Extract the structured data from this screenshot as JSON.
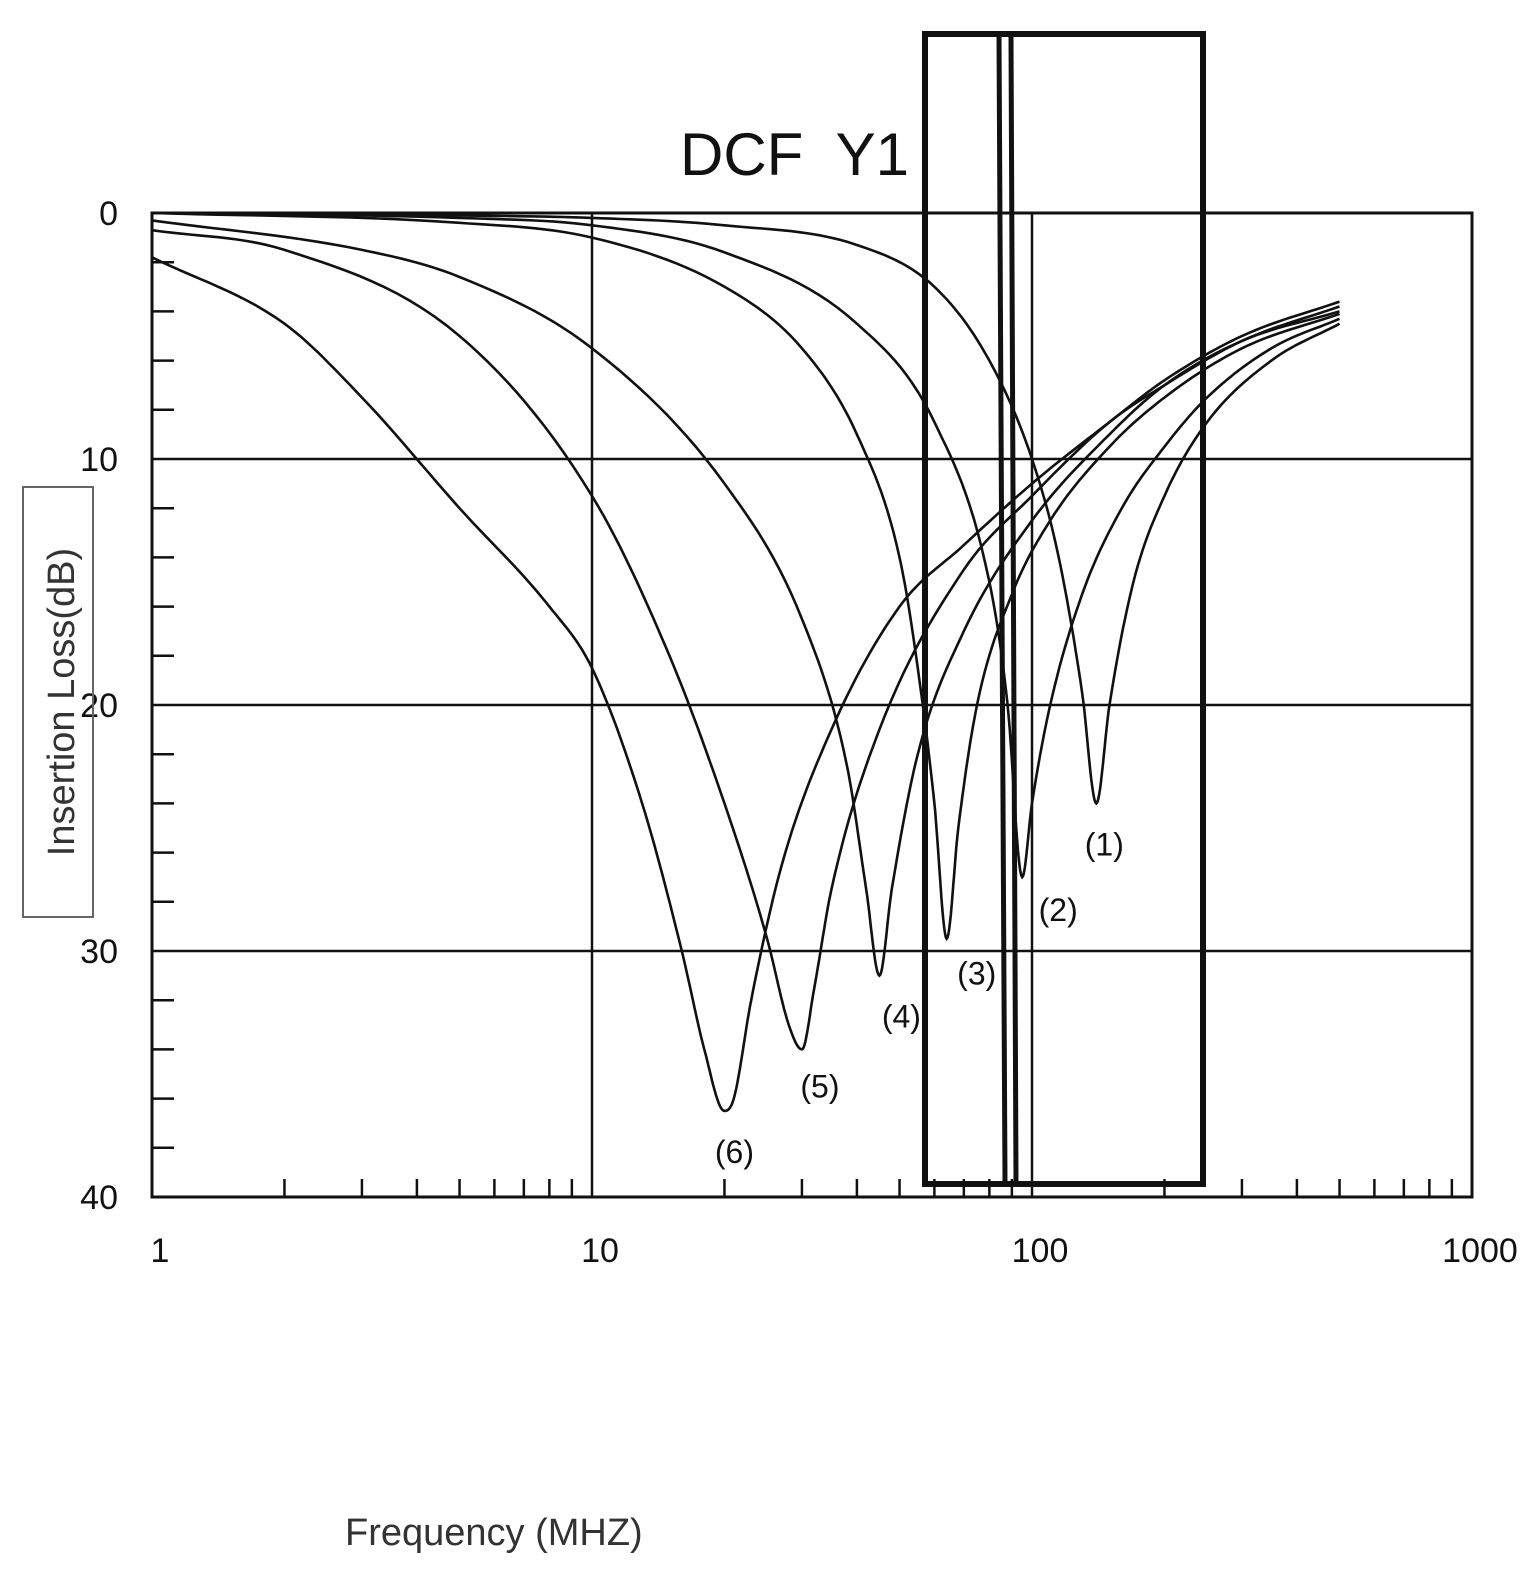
{
  "chart_data": {
    "type": "line",
    "title": "DCF  Y1",
    "xlabel": "Frequency (MHZ)",
    "ylabel": "Insertion Loss(dB)",
    "x_scale": "log",
    "xlim": [
      1,
      1000
    ],
    "ylim": [
      0,
      40
    ],
    "y_inverted": true,
    "grid": true,
    "x_ticks": [
      "1",
      "10",
      "100",
      "1000"
    ],
    "y_ticks": [
      "0",
      "10",
      "20",
      "30",
      "40"
    ],
    "series": [
      {
        "name": "(1)",
        "points": [
          [
            1,
            0.0
          ],
          [
            5,
            0.1
          ],
          [
            10,
            0.2
          ],
          [
            20,
            0.5
          ],
          [
            40,
            1.3
          ],
          [
            60,
            3.0
          ],
          [
            80,
            6.0
          ],
          [
            100,
            10.0
          ],
          [
            115,
            14.0
          ],
          [
            130,
            19.5
          ],
          [
            140,
            24.0
          ],
          [
            150,
            20.0
          ],
          [
            170,
            15.0
          ],
          [
            200,
            11.5
          ],
          [
            250,
            8.5
          ],
          [
            350,
            6.0
          ],
          [
            500,
            4.5
          ]
        ]
      },
      {
        "name": "(2)",
        "points": [
          [
            1,
            0.0
          ],
          [
            5,
            0.2
          ],
          [
            10,
            0.5
          ],
          [
            20,
            1.6
          ],
          [
            40,
            4.5
          ],
          [
            60,
            8.5
          ],
          [
            80,
            15.0
          ],
          [
            88,
            20.0
          ],
          [
            95,
            27.0
          ],
          [
            100,
            24.0
          ],
          [
            110,
            20.0
          ],
          [
            130,
            15.5
          ],
          [
            160,
            12.0
          ],
          [
            200,
            9.5
          ],
          [
            250,
            7.5
          ],
          [
            350,
            5.5
          ],
          [
            500,
            4.3
          ]
        ]
      },
      {
        "name": "(3)",
        "points": [
          [
            1,
            0.0
          ],
          [
            5,
            0.4
          ],
          [
            10,
            1.0
          ],
          [
            20,
            3.0
          ],
          [
            30,
            5.5
          ],
          [
            40,
            9.0
          ],
          [
            50,
            14.0
          ],
          [
            55,
            18.5
          ],
          [
            60,
            24.0
          ],
          [
            64,
            29.5
          ],
          [
            68,
            25.0
          ],
          [
            75,
            20.0
          ],
          [
            90,
            15.5
          ],
          [
            110,
            12.5
          ],
          [
            150,
            9.5
          ],
          [
            200,
            7.5
          ],
          [
            300,
            5.5
          ],
          [
            500,
            4.1
          ]
        ]
      },
      {
        "name": "(4)",
        "points": [
          [
            1,
            0.3
          ],
          [
            3,
            1.5
          ],
          [
            5,
            2.6
          ],
          [
            10,
            5.5
          ],
          [
            20,
            11.0
          ],
          [
            30,
            16.5
          ],
          [
            38,
            22.5
          ],
          [
            42,
            27.5
          ],
          [
            45,
            31.0
          ],
          [
            48,
            27.5
          ],
          [
            55,
            22.0
          ],
          [
            70,
            17.0
          ],
          [
            100,
            12.5
          ],
          [
            150,
            9.0
          ],
          [
            200,
            7.0
          ],
          [
            300,
            5.2
          ],
          [
            500,
            4.0
          ]
        ]
      },
      {
        "name": "(5)",
        "points": [
          [
            1,
            0.7
          ],
          [
            2,
            1.5
          ],
          [
            5,
            5.0
          ],
          [
            10,
            11.5
          ],
          [
            15,
            18.0
          ],
          [
            20,
            24.0
          ],
          [
            25,
            29.5
          ],
          [
            28,
            33.0
          ],
          [
            30,
            34.0
          ],
          [
            32,
            31.5
          ],
          [
            35,
            27.5
          ],
          [
            45,
            21.0
          ],
          [
            70,
            14.5
          ],
          [
            100,
            11.5
          ],
          [
            150,
            8.5
          ],
          [
            200,
            7.0
          ],
          [
            300,
            5.2
          ],
          [
            500,
            3.8
          ]
        ]
      },
      {
        "name": "(6)",
        "points": [
          [
            1,
            1.8
          ],
          [
            2,
            4.5
          ],
          [
            3,
            7.5
          ],
          [
            5,
            12.0
          ],
          [
            8,
            16.0
          ],
          [
            10,
            18.5
          ],
          [
            13,
            24.0
          ],
          [
            16,
            30.0
          ],
          [
            18,
            34.0
          ],
          [
            20,
            36.5
          ],
          [
            21,
            36.0
          ],
          [
            23,
            32.0
          ],
          [
            27,
            26.5
          ],
          [
            35,
            21.0
          ],
          [
            50,
            16.0
          ],
          [
            70,
            13.5
          ],
          [
            100,
            11.0
          ],
          [
            150,
            8.5
          ],
          [
            200,
            6.8
          ],
          [
            300,
            5.0
          ],
          [
            500,
            3.6
          ]
        ]
      }
    ]
  }
}
